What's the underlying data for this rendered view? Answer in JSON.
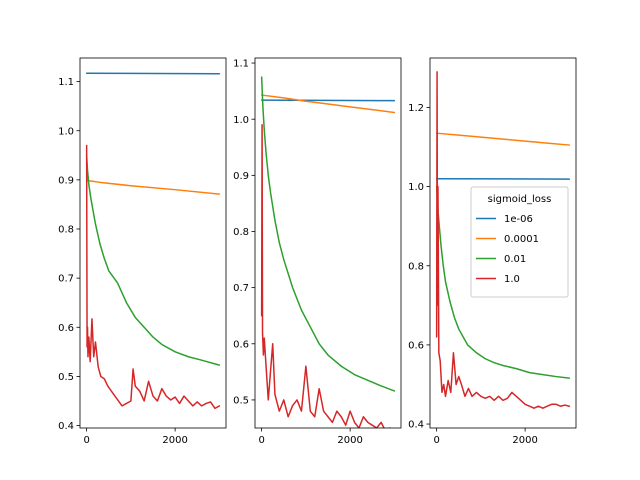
{
  "chart_data": [
    {
      "type": "line",
      "xlim": [
        -150,
        3150
      ],
      "ylim": [
        0.395,
        1.148
      ],
      "xticks": [
        0,
        2000
      ],
      "xtick_labels": [
        "0",
        "2000"
      ],
      "yticks": [
        0.4,
        0.5,
        0.6,
        0.7,
        0.8,
        0.9,
        1.0,
        1.1
      ],
      "ytick_labels": [
        "0.4",
        "0.5",
        "0.6",
        "0.7",
        "0.8",
        "0.9",
        "1.0",
        "1.1"
      ],
      "series": [
        {
          "name": "1e-06",
          "color": "#1f77b4",
          "x": [
            0,
            3000
          ],
          "y": [
            1.117,
            1.116
          ]
        },
        {
          "name": "0.0001",
          "color": "#ff7f0e",
          "x": [
            0,
            300,
            1000,
            2000,
            3000
          ],
          "y": [
            0.899,
            0.895,
            0.888,
            0.88,
            0.871
          ]
        },
        {
          "name": "0.01",
          "color": "#2ca02c",
          "x": [
            0,
            20,
            50,
            100,
            200,
            300,
            400,
            500,
            700,
            900,
            1100,
            1300,
            1500,
            1700,
            2000,
            2300,
            2600,
            3000
          ],
          "y": [
            0.95,
            0.92,
            0.89,
            0.86,
            0.81,
            0.77,
            0.74,
            0.715,
            0.69,
            0.65,
            0.62,
            0.6,
            0.58,
            0.565,
            0.55,
            0.54,
            0.533,
            0.523
          ]
        },
        {
          "name": "1.0",
          "color": "#d62728",
          "x": [
            0,
            10,
            20,
            30,
            50,
            80,
            120,
            160,
            200,
            260,
            320,
            400,
            480,
            560,
            640,
            720,
            800,
            900,
            1000,
            1050,
            1100,
            1200,
            1300,
            1400,
            1500,
            1600,
            1700,
            1800,
            1900,
            2000,
            2100,
            2200,
            2300,
            2400,
            2500,
            2600,
            2700,
            2800,
            2900,
            3000
          ],
          "y": [
            0.97,
            0.56,
            0.6,
            0.54,
            0.58,
            0.53,
            0.617,
            0.54,
            0.57,
            0.52,
            0.5,
            0.495,
            0.48,
            0.47,
            0.46,
            0.45,
            0.44,
            0.445,
            0.45,
            0.515,
            0.48,
            0.47,
            0.45,
            0.49,
            0.46,
            0.45,
            0.475,
            0.46,
            0.452,
            0.458,
            0.445,
            0.46,
            0.45,
            0.44,
            0.448,
            0.44,
            0.445,
            0.448,
            0.435,
            0.44
          ]
        }
      ]
    },
    {
      "type": "line",
      "xlim": [
        -150,
        3150
      ],
      "ylim": [
        0.45,
        1.109
      ],
      "xticks": [
        0,
        2000
      ],
      "xtick_labels": [
        "0",
        "2000"
      ],
      "yticks": [
        0.5,
        0.6,
        0.7,
        0.8,
        0.9,
        1.0,
        1.1
      ],
      "ytick_labels": [
        "0.5",
        "0.6",
        "0.7",
        "0.8",
        "0.9",
        "1.0",
        "1.1"
      ],
      "series": [
        {
          "name": "1e-06",
          "color": "#1f77b4",
          "x": [
            0,
            3000
          ],
          "y": [
            1.034,
            1.033
          ]
        },
        {
          "name": "0.0001",
          "color": "#ff7f0e",
          "x": [
            0,
            500,
            1000,
            1500,
            2000,
            2500,
            3000
          ],
          "y": [
            1.043,
            1.038,
            1.032,
            1.027,
            1.022,
            1.017,
            1.012
          ]
        },
        {
          "name": "0.01",
          "color": "#2ca02c",
          "x": [
            0,
            30,
            60,
            100,
            150,
            200,
            300,
            400,
            500,
            700,
            900,
            1100,
            1300,
            1500,
            1800,
            2100,
            2400,
            2700,
            3000
          ],
          "y": [
            1.075,
            1.02,
            0.98,
            0.94,
            0.9,
            0.87,
            0.82,
            0.78,
            0.75,
            0.7,
            0.66,
            0.63,
            0.6,
            0.58,
            0.56,
            0.545,
            0.535,
            0.525,
            0.516
          ]
        },
        {
          "name": "1.0",
          "color": "#d62728",
          "x": [
            0,
            10,
            20,
            40,
            60,
            100,
            150,
            200,
            250,
            300,
            400,
            500,
            600,
            700,
            800,
            900,
            1000,
            1100,
            1200,
            1300,
            1400,
            1500,
            1600,
            1700,
            1800,
            1900,
            2000,
            2100,
            2200,
            2300,
            2400,
            2500,
            2600,
            2700,
            2800,
            2900,
            3000
          ],
          "y": [
            0.65,
            0.99,
            0.62,
            0.58,
            0.61,
            0.56,
            0.5,
            0.55,
            0.6,
            0.51,
            0.48,
            0.5,
            0.47,
            0.49,
            0.5,
            0.48,
            0.56,
            0.48,
            0.47,
            0.52,
            0.48,
            0.47,
            0.46,
            0.48,
            0.47,
            0.455,
            0.48,
            0.46,
            0.45,
            0.47,
            0.46,
            0.455,
            0.45,
            0.46,
            0.445,
            0.45,
            0.44
          ]
        }
      ]
    },
    {
      "type": "line",
      "xlim": [
        -150,
        3150
      ],
      "ylim": [
        0.39,
        1.325
      ],
      "xticks": [
        0,
        2000
      ],
      "xtick_labels": [
        "0",
        "2000"
      ],
      "yticks": [
        0.4,
        0.6,
        0.8,
        1.0,
        1.2
      ],
      "ytick_labels": [
        "0.4",
        "0.6",
        "0.8",
        "1.0",
        "1.2"
      ],
      "legend": {
        "title": "sigmoid_loss",
        "entries": [
          "1e-06",
          "0.0001",
          "0.01",
          "1.0"
        ],
        "location": "center-right"
      },
      "series": [
        {
          "name": "1e-06",
          "color": "#1f77b4",
          "x": [
            0,
            3000
          ],
          "y": [
            1.02,
            1.019
          ]
        },
        {
          "name": "0.0001",
          "color": "#ff7f0e",
          "x": [
            0,
            500,
            1000,
            1500,
            2000,
            2500,
            3000
          ],
          "y": [
            1.135,
            1.13,
            1.125,
            1.12,
            1.115,
            1.11,
            1.105
          ]
        },
        {
          "name": "0.01",
          "color": "#2ca02c",
          "x": [
            0,
            30,
            60,
            100,
            150,
            200,
            300,
            400,
            500,
            700,
            900,
            1100,
            1300,
            1500,
            1800,
            2100,
            2400,
            2700,
            3000
          ],
          "y": [
            1.0,
            0.94,
            0.9,
            0.85,
            0.8,
            0.76,
            0.71,
            0.67,
            0.64,
            0.6,
            0.58,
            0.565,
            0.555,
            0.548,
            0.54,
            0.53,
            0.525,
            0.52,
            0.516
          ]
        },
        {
          "name": "1.0",
          "color": "#d62728",
          "x": [
            0,
            10,
            20,
            30,
            50,
            80,
            120,
            160,
            200,
            260,
            320,
            380,
            440,
            500,
            560,
            640,
            720,
            800,
            900,
            1000,
            1100,
            1200,
            1300,
            1400,
            1500,
            1600,
            1700,
            1800,
            1900,
            2000,
            2100,
            2200,
            2300,
            2400,
            2500,
            2600,
            2700,
            2800,
            2900,
            3000
          ],
          "y": [
            0.62,
            1.29,
            0.7,
            1.0,
            0.58,
            0.56,
            0.48,
            0.5,
            0.47,
            0.51,
            0.48,
            0.58,
            0.5,
            0.52,
            0.5,
            0.47,
            0.49,
            0.47,
            0.48,
            0.47,
            0.465,
            0.47,
            0.46,
            0.47,
            0.46,
            0.465,
            0.48,
            0.47,
            0.46,
            0.45,
            0.445,
            0.44,
            0.445,
            0.44,
            0.445,
            0.45,
            0.45,
            0.445,
            0.448,
            0.445
          ]
        }
      ]
    }
  ]
}
